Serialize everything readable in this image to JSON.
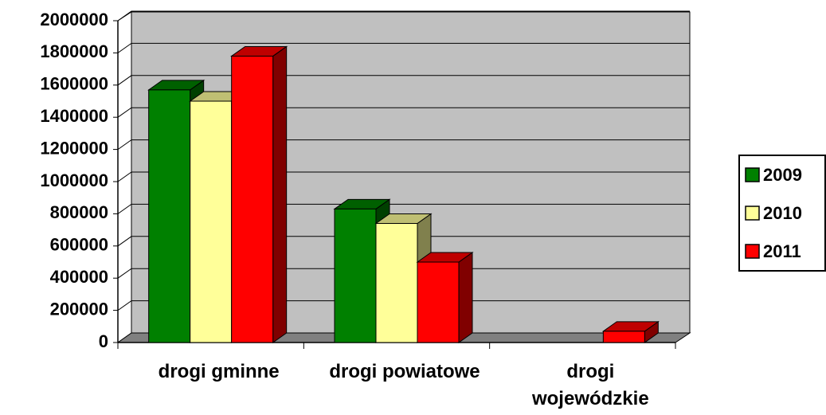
{
  "chart_data": {
    "type": "bar3d",
    "categories": [
      "drogi gminne",
      "drogi powiatowe",
      "drogi wojewódzkie"
    ],
    "series": [
      {
        "name": "2009",
        "color": "#008000",
        "values": [
          1570000,
          830000,
          0
        ]
      },
      {
        "name": "2010",
        "color": "#ffff99",
        "values": [
          1500000,
          740000,
          0
        ]
      },
      {
        "name": "2011",
        "color": "#ff0000",
        "values": [
          1780000,
          500000,
          70000
        ]
      }
    ],
    "ylim": [
      0,
      2000000
    ],
    "yticks": [
      0,
      200000,
      400000,
      600000,
      800000,
      1000000,
      1200000,
      1400000,
      1600000,
      1800000,
      2000000
    ],
    "grid": true,
    "legend": "right"
  }
}
